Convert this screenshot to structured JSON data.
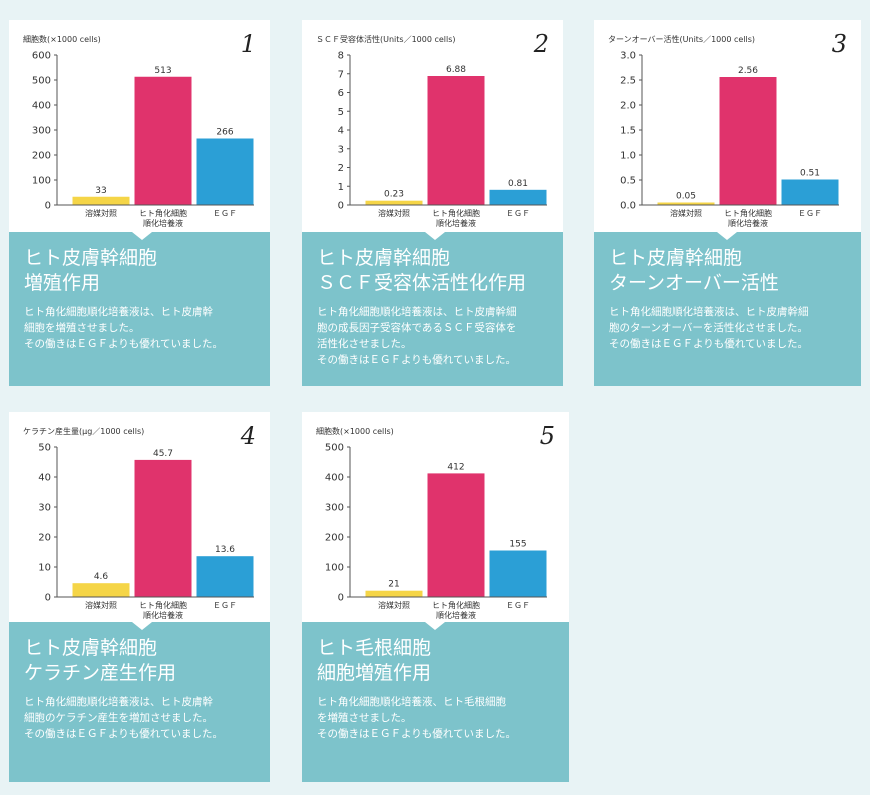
{
  "colors": {
    "background": "#e8f3f5",
    "info_panel": "#7dc3cb",
    "solvent_control": "#f5d547",
    "keratinocyte_medium": "#e0336c",
    "egf": "#2b9fd6"
  },
  "cards": [
    {
      "number": "1",
      "unit": "細胞数(×1000 cells)",
      "title": "ヒト皮膚幹細胞\n増殖作用",
      "desc": "ヒト角化細胞順化培養液は、ヒト皮膚幹\n細胞を増殖させました。\nその働きはＥＧＦよりも優れていました。"
    },
    {
      "number": "2",
      "unit": "ＳＣＦ受容体活性(Units／1000 cells)",
      "title": "ヒト皮膚幹細胞\nＳＣＦ受容体活性化作用",
      "desc": "ヒト角化細胞順化培養液は、ヒト皮膚幹細\n胞の成長因子受容体であるＳＣＦ受容体を\n活性化させました。\nその働きはＥＧＦよりも優れていました。"
    },
    {
      "number": "3",
      "unit": "ターンオーバー活性(Units／1000 cells)",
      "title": "ヒト皮膚幹細胞\nターンオーバー活性",
      "desc": "ヒト角化細胞順化培養液は、ヒト皮膚幹細\n胞のターンオーバーを活性化させました。\nその働きはＥＧＦよりも優れていました。"
    },
    {
      "number": "4",
      "unit": "ケラチン産生量(μg／1000 cells)",
      "title": "ヒト皮膚幹細胞\nケラチン産生作用",
      "desc": "ヒト角化細胞順化培養液は、ヒト皮膚幹\n細胞のケラチン産生を増加させました。\nその働きはＥＧＦよりも優れていました。"
    },
    {
      "number": "5",
      "unit": "細胞数(×1000 cells)",
      "title": "ヒト毛根細胞\n細胞増殖作用",
      "desc": "ヒト角化細胞順化培養液、ヒト毛根細胞\nを増殖させました。\nその働きはＥＧＦよりも優れていました。"
    }
  ],
  "chart_data": [
    {
      "type": "bar",
      "ylabel": "細胞数(×1000 cells)",
      "categories": [
        "溶媒対照",
        "ヒト角化細胞\n順化培養液",
        "ＥＧＦ"
      ],
      "values": [
        33,
        513,
        266
      ],
      "value_labels": [
        "33",
        "513",
        "266"
      ],
      "yticks": [
        "0",
        "100",
        "200",
        "300",
        "400",
        "500",
        "600"
      ],
      "ylim": [
        0,
        600
      ]
    },
    {
      "type": "bar",
      "ylabel": "ＳＣＦ受容体活性(Units／1000 cells)",
      "categories": [
        "溶媒対照",
        "ヒト角化細胞\n順化培養液",
        "ＥＧＦ"
      ],
      "values": [
        0.23,
        6.88,
        0.81
      ],
      "value_labels": [
        "0.23",
        "6.88",
        "0.81"
      ],
      "yticks": [
        "0",
        "1",
        "2",
        "3",
        "4",
        "5",
        "6",
        "7",
        "8"
      ],
      "ylim": [
        0,
        8
      ]
    },
    {
      "type": "bar",
      "ylabel": "ターンオーバー活性(Units／1000 cells)",
      "categories": [
        "溶媒対照",
        "ヒト角化細胞\n順化培養液",
        "ＥＧＦ"
      ],
      "values": [
        0.05,
        2.56,
        0.51
      ],
      "value_labels": [
        "0.05",
        "2.56",
        "0.51"
      ],
      "yticks": [
        "0.0",
        "0.5",
        "1.0",
        "1.5",
        "2.0",
        "2.5",
        "3.0"
      ],
      "ylim": [
        0,
        3
      ]
    },
    {
      "type": "bar",
      "ylabel": "ケラチン産生量(μg／1000 cells)",
      "categories": [
        "溶媒対照",
        "ヒト角化細胞\n順化培養液",
        "ＥＧＦ"
      ],
      "values": [
        4.6,
        45.7,
        13.6
      ],
      "value_labels": [
        "4.6",
        "45.7",
        "13.6"
      ],
      "yticks": [
        "0",
        "10",
        "20",
        "30",
        "40",
        "50"
      ],
      "ylim": [
        0,
        50
      ]
    },
    {
      "type": "bar",
      "ylabel": "細胞数(×1000 cells)",
      "categories": [
        "溶媒対照",
        "ヒト角化細胞\n順化培養液",
        "ＥＧＦ"
      ],
      "values": [
        21,
        412,
        155
      ],
      "value_labels": [
        "21",
        "412",
        "155"
      ],
      "yticks": [
        "0",
        "100",
        "200",
        "300",
        "400",
        "500"
      ],
      "ylim": [
        0,
        500
      ]
    }
  ]
}
